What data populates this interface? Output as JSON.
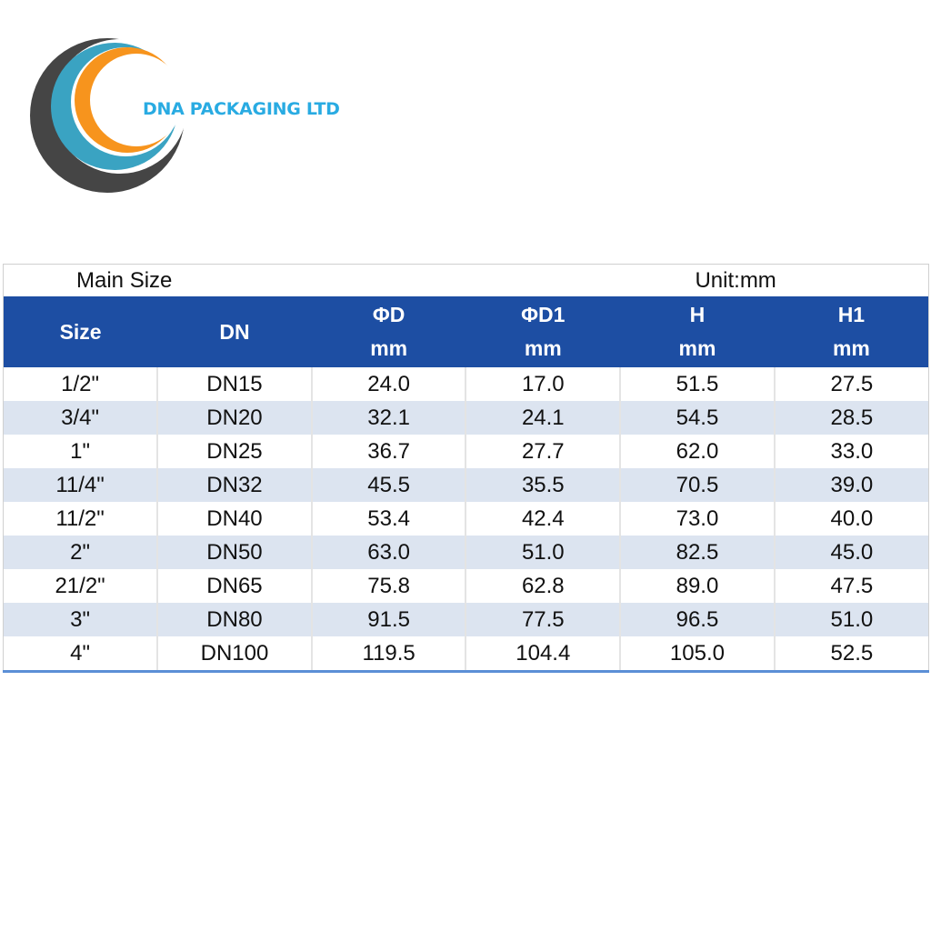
{
  "header": {
    "company": "DNA PACKAGING LTD"
  },
  "table": {
    "caption": "Main Size",
    "unit": "Unit:mm",
    "columns": [
      {
        "title": "Size"
      },
      {
        "title": "DN"
      },
      {
        "title": "ΦD",
        "unit": "mm"
      },
      {
        "title": "ΦD1",
        "unit": "mm"
      },
      {
        "title": "H",
        "unit": "mm"
      },
      {
        "title": "H1",
        "unit": "mm"
      }
    ],
    "rows": [
      [
        "1/2\"",
        "DN15",
        "24.0",
        "17.0",
        "51.5",
        "27.5"
      ],
      [
        "3/4\"",
        "DN20",
        "32.1",
        "24.1",
        "54.5",
        "28.5"
      ],
      [
        "1\"",
        "DN25",
        "36.7",
        "27.7",
        "62.0",
        "33.0"
      ],
      [
        "11/4\"",
        "DN32",
        "45.5",
        "35.5",
        "70.5",
        "39.0"
      ],
      [
        "11/2\"",
        "DN40",
        "53.4",
        "42.4",
        "73.0",
        "40.0"
      ],
      [
        "2\"",
        "DN50",
        "63.0",
        "51.0",
        "82.5",
        "45.0"
      ],
      [
        "21/2\"",
        "DN65",
        "75.8",
        "62.8",
        "89.0",
        "47.5"
      ],
      [
        "3\"",
        "DN80",
        "91.5",
        "77.5",
        "96.5",
        "51.0"
      ],
      [
        "4\"",
        "DN100",
        "119.5",
        "104.4",
        "105.0",
        "52.5"
      ]
    ]
  }
}
